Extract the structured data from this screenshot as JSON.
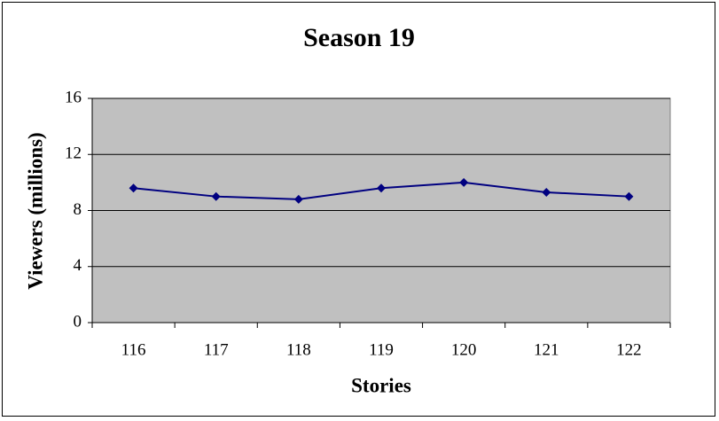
{
  "chart_data": {
    "type": "line",
    "title": "Season 19",
    "x_label": "Stories",
    "y_label": "Viewers (millions)",
    "categories": [
      "116",
      "117",
      "118",
      "119",
      "120",
      "121",
      "122"
    ],
    "values": [
      9.6,
      9.0,
      8.8,
      9.6,
      10.0,
      9.3,
      9.0
    ],
    "color": "#000080",
    "ylim": [
      0,
      16
    ],
    "yticks": [
      0,
      4,
      8,
      12,
      16
    ],
    "grid": true
  }
}
